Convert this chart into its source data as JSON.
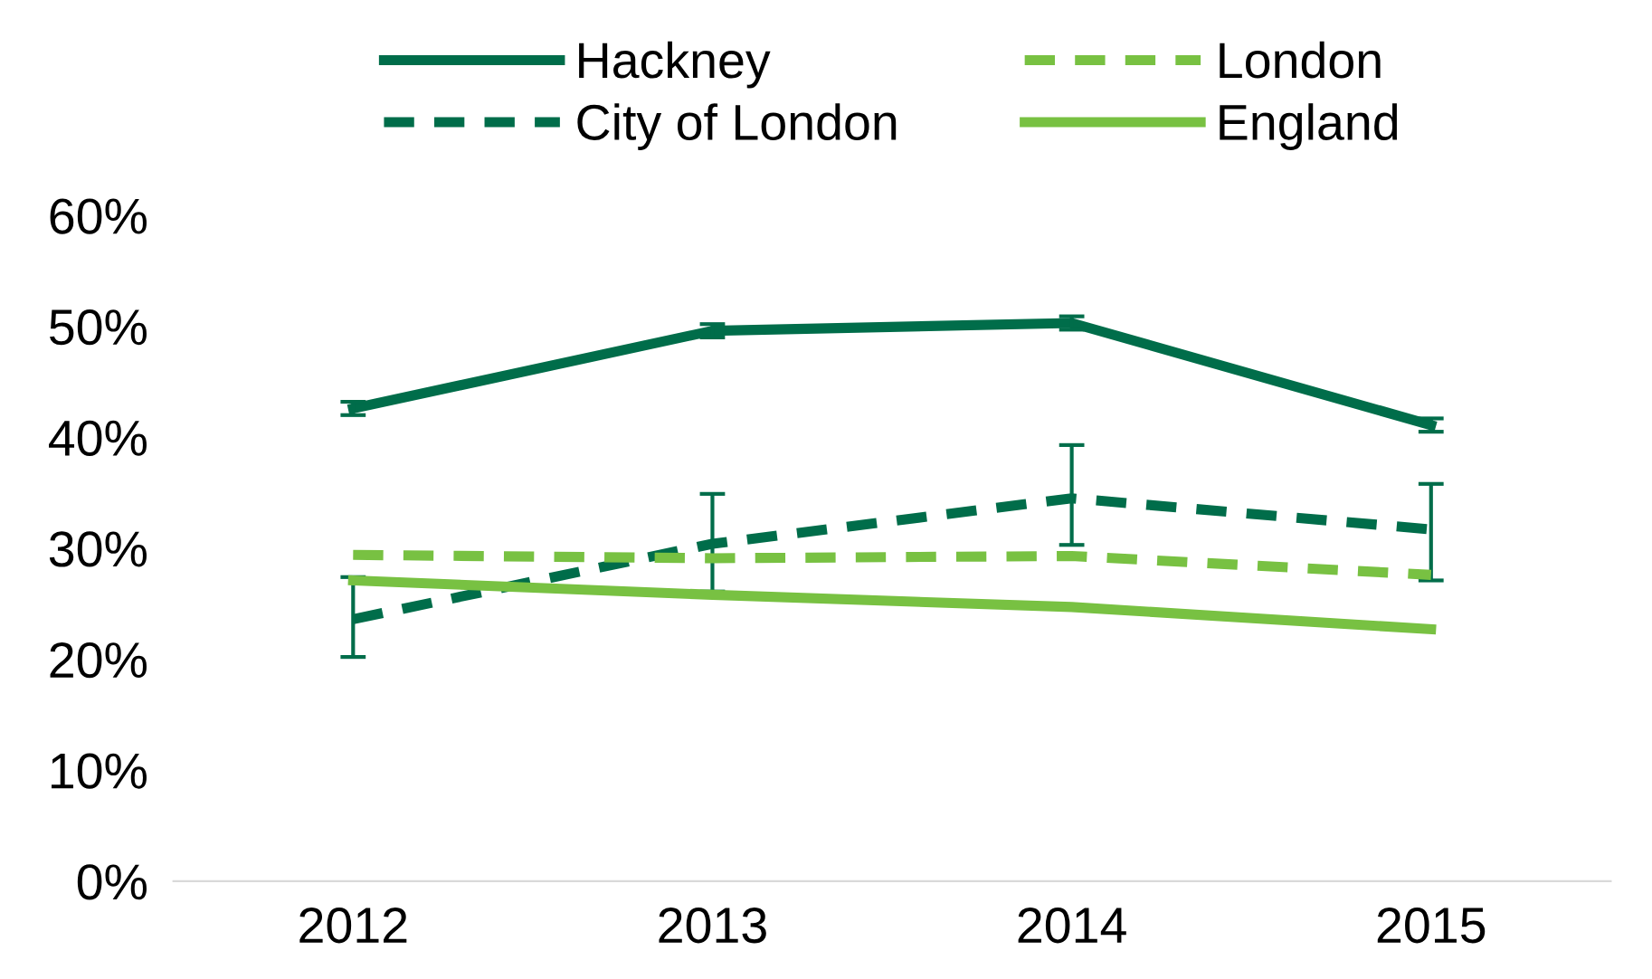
{
  "chart_data": {
    "type": "line",
    "categories": [
      "2012",
      "2013",
      "2014",
      "2015"
    ],
    "series": [
      {
        "name": "Hackney",
        "color": "#006d4a",
        "line_style": "solid",
        "values": [
          42.6,
          49.6,
          50.3,
          41.1
        ],
        "errors": [
          0.6,
          0.6,
          0.6,
          0.6
        ]
      },
      {
        "name": "City of London",
        "color": "#006d4a",
        "line_style": "dashed",
        "values": [
          23.6,
          30.4,
          34.5,
          31.7
        ],
        "errors": [
          [
            20.2,
            27.4
          ],
          [
            26.1,
            34.9
          ],
          [
            30.3,
            39.3
          ],
          [
            27.1,
            35.8
          ]
        ]
      },
      {
        "name": "London",
        "color": "#78c142",
        "line_style": "dashed",
        "values": [
          29.4,
          29.1,
          29.3,
          27.6
        ]
      },
      {
        "name": "England",
        "color": "#78c142",
        "line_style": "solid",
        "values": [
          27.1,
          25.8,
          24.7,
          22.7
        ]
      }
    ],
    "ylim": [
      0,
      60
    ],
    "yticks": [
      {
        "value": 0,
        "label": "0%"
      },
      {
        "value": 10,
        "label": "10%"
      },
      {
        "value": 20,
        "label": "20%"
      },
      {
        "value": 30,
        "label": "30%"
      },
      {
        "value": 40,
        "label": "40%"
      },
      {
        "value": 50,
        "label": "50%"
      },
      {
        "value": 60,
        "label": "60%"
      }
    ],
    "grid": false,
    "legend": "top",
    "marker": "none"
  }
}
